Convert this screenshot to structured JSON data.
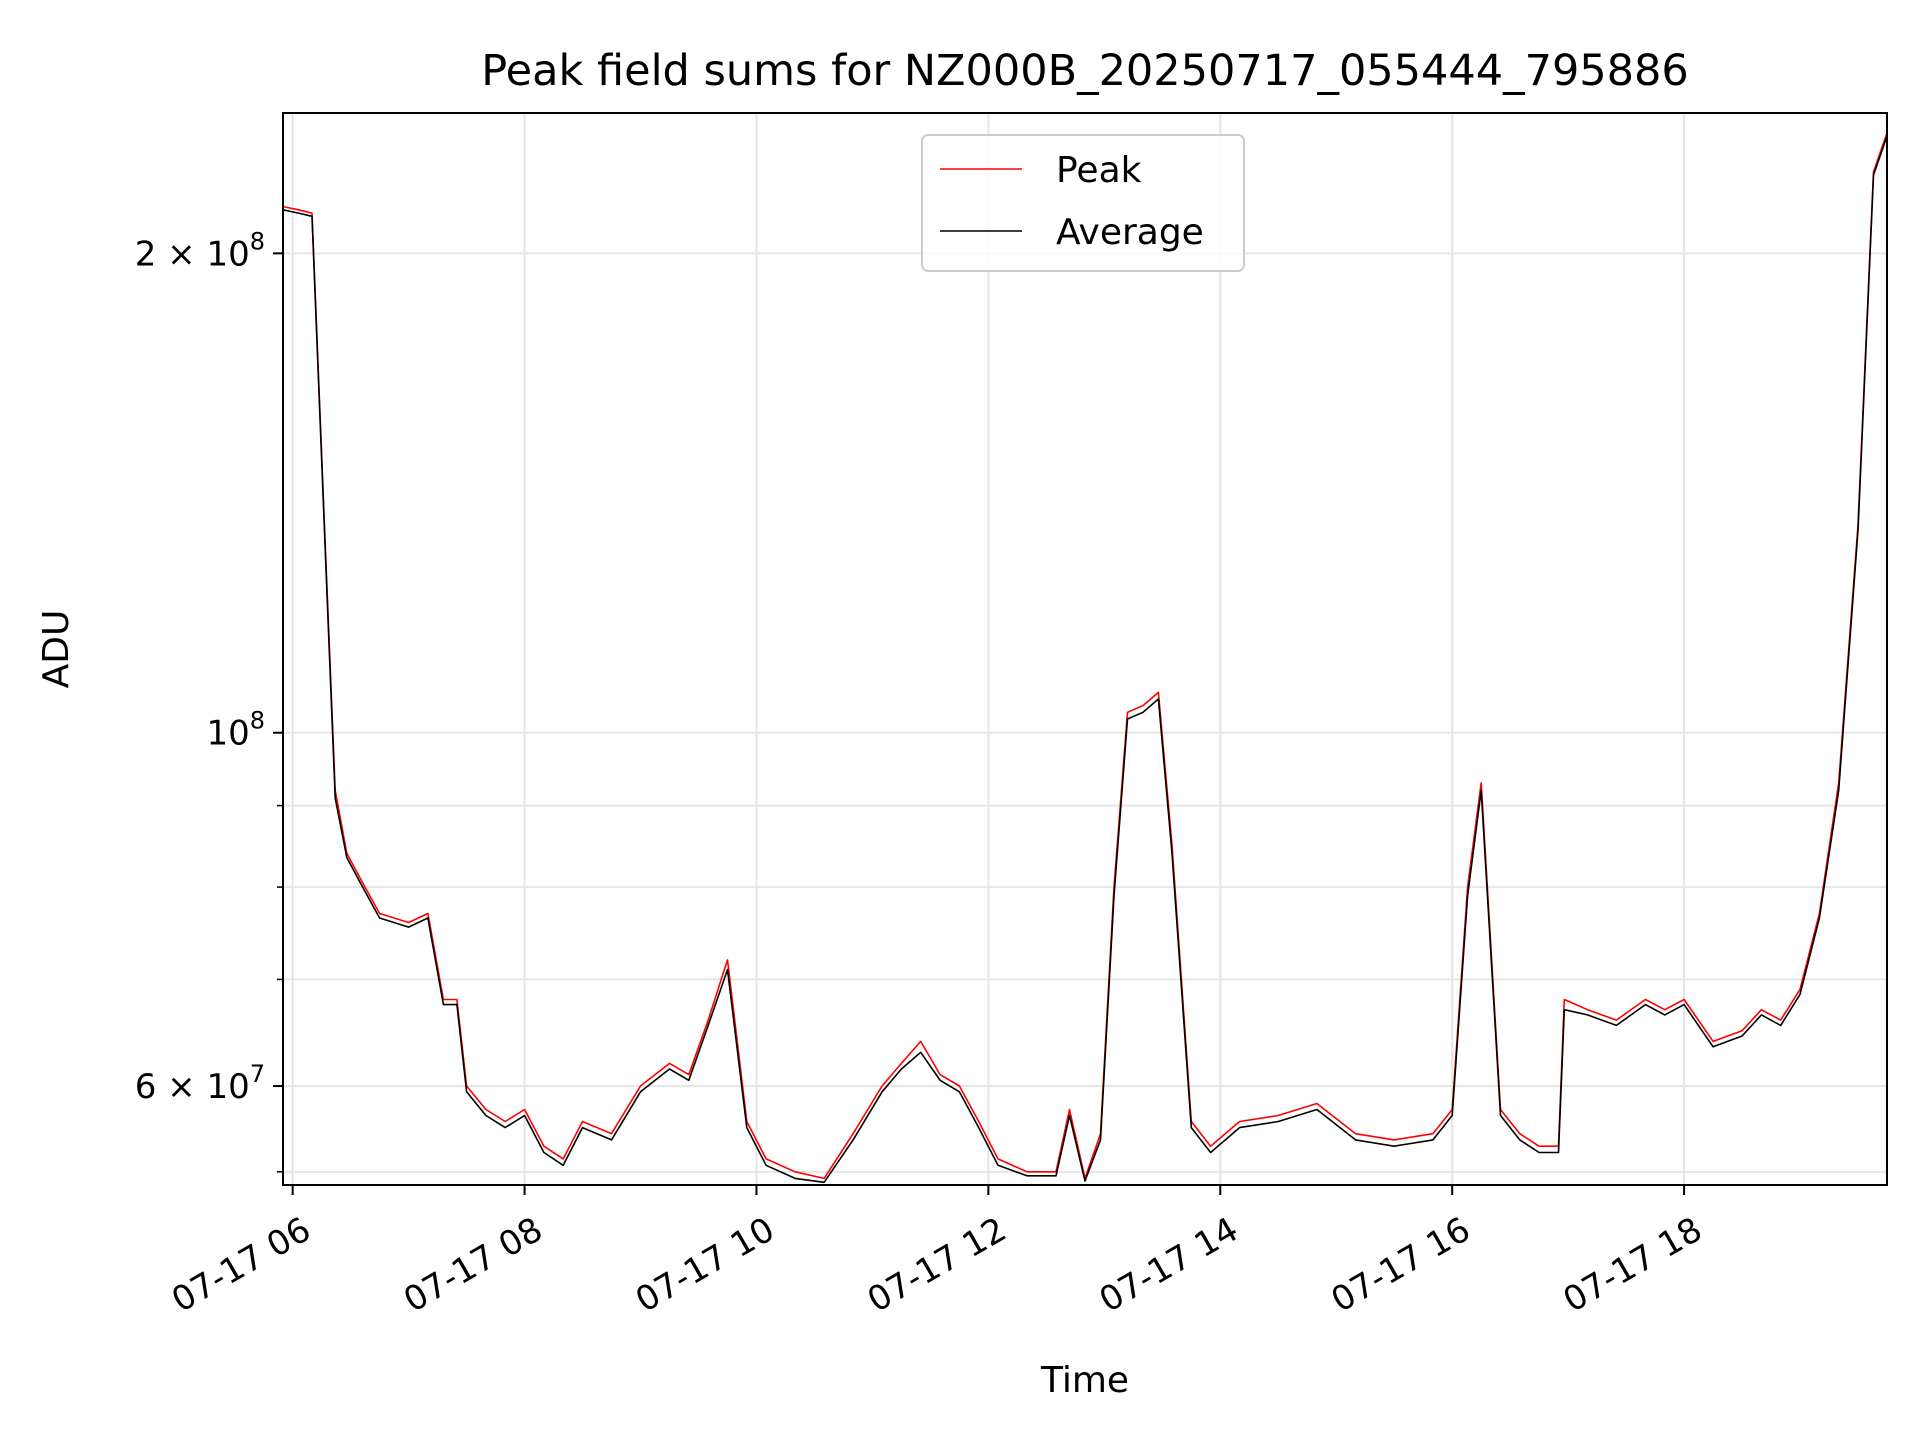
{
  "chart_data": {
    "type": "line",
    "title": "Peak field sums for NZ000B_20250717_055444_795886",
    "xlabel": "Time",
    "ylabel": "ADU",
    "y_scale": "log",
    "xlim": [
      "2025-07-17 05:55",
      "2025-07-17 19:45"
    ],
    "ylim": [
      52000000,
      245000000
    ],
    "grid": true,
    "legend_position": "top-center",
    "x_ticks": [
      "2025-07-17 06:00",
      "2025-07-17 08:00",
      "2025-07-17 10:00",
      "2025-07-17 12:00",
      "2025-07-17 14:00",
      "2025-07-17 16:00",
      "2025-07-17 18:00"
    ],
    "x_tick_labels": [
      "07-17 06",
      "07-17 08",
      "07-17 10",
      "07-17 12",
      "07-17 14",
      "07-17 16",
      "07-17 18"
    ],
    "y_major_ticks": [
      60000000,
      100000000,
      200000000
    ],
    "y_tick_labels": [
      {
        "mantissa": "6",
        "times": " × ",
        "base": "10",
        "exp": "7"
      },
      {
        "mantissa": "",
        "times": "",
        "base": "10",
        "exp": "8"
      },
      {
        "mantissa": "2",
        "times": " × ",
        "base": "10",
        "exp": "8"
      }
    ],
    "y_minor_ticks": [
      53000000,
      70000000,
      80000000,
      90000000
    ],
    "x": [
      "2025-07-17 05:55",
      "2025-07-17 06:03",
      "2025-07-17 06:10",
      "2025-07-17 06:17",
      "2025-07-17 06:22",
      "2025-07-17 06:28",
      "2025-07-17 06:35",
      "2025-07-17 06:45",
      "2025-07-17 07:00",
      "2025-07-17 07:10",
      "2025-07-17 07:18",
      "2025-07-17 07:25",
      "2025-07-17 07:30",
      "2025-07-17 07:40",
      "2025-07-17 07:50",
      "2025-07-17 08:00",
      "2025-07-17 08:10",
      "2025-07-17 08:20",
      "2025-07-17 08:30",
      "2025-07-17 08:45",
      "2025-07-17 09:00",
      "2025-07-17 09:15",
      "2025-07-17 09:25",
      "2025-07-17 09:35",
      "2025-07-17 09:45",
      "2025-07-17 09:55",
      "2025-07-17 10:05",
      "2025-07-17 10:20",
      "2025-07-17 10:35",
      "2025-07-17 10:50",
      "2025-07-17 11:05",
      "2025-07-17 11:15",
      "2025-07-17 11:25",
      "2025-07-17 11:35",
      "2025-07-17 11:45",
      "2025-07-17 11:55",
      "2025-07-17 12:05",
      "2025-07-17 12:20",
      "2025-07-17 12:35",
      "2025-07-17 12:42",
      "2025-07-17 12:50",
      "2025-07-17 12:58",
      "2025-07-17 13:05",
      "2025-07-17 13:12",
      "2025-07-17 13:20",
      "2025-07-17 13:28",
      "2025-07-17 13:35",
      "2025-07-17 13:45",
      "2025-07-17 13:55",
      "2025-07-17 14:10",
      "2025-07-17 14:30",
      "2025-07-17 14:50",
      "2025-07-17 15:10",
      "2025-07-17 15:30",
      "2025-07-17 15:50",
      "2025-07-17 16:00",
      "2025-07-17 16:08",
      "2025-07-17 16:15",
      "2025-07-17 16:25",
      "2025-07-17 16:35",
      "2025-07-17 16:45",
      "2025-07-17 16:55",
      "2025-07-17 16:58",
      "2025-07-17 17:10",
      "2025-07-17 17:25",
      "2025-07-17 17:40",
      "2025-07-17 17:50",
      "2025-07-17 18:00",
      "2025-07-17 18:15",
      "2025-07-17 18:30",
      "2025-07-17 18:40",
      "2025-07-17 18:50",
      "2025-07-17 19:00",
      "2025-07-17 19:10",
      "2025-07-17 19:20",
      "2025-07-17 19:30",
      "2025-07-17 19:38",
      "2025-07-17 19:45"
    ],
    "series": [
      {
        "name": "Peak",
        "color": "#ff0000",
        "values": [
          214000000,
          213000000,
          212000000,
          130000000,
          92000000,
          84000000,
          81000000,
          77000000,
          76000000,
          77000000,
          68000000,
          68000000,
          60000000,
          58000000,
          57000000,
          58000000,
          55000000,
          54000000,
          57000000,
          56000000,
          60000000,
          62000000,
          61000000,
          66000000,
          72000000,
          57000000,
          54000000,
          53000000,
          52500000,
          56000000,
          60000000,
          62000000,
          64000000,
          61000000,
          60000000,
          57000000,
          54000000,
          53000000,
          53000000,
          58000000,
          52500000,
          56000000,
          80000000,
          103000000,
          104000000,
          106000000,
          85000000,
          57000000,
          55000000,
          57000000,
          57500000,
          58500000,
          56000000,
          55500000,
          56000000,
          58000000,
          80000000,
          93000000,
          58000000,
          56000000,
          55000000,
          55000000,
          68000000,
          67000000,
          66000000,
          68000000,
          67000000,
          68000000,
          64000000,
          65000000,
          67000000,
          66000000,
          69000000,
          77000000,
          93000000,
          135000000,
          225000000,
          238000000
        ]
      },
      {
        "name": "Average",
        "color": "#000000",
        "values": [
          213000000,
          212000000,
          211000000,
          129000000,
          91000000,
          83500000,
          80500000,
          76500000,
          75500000,
          76500000,
          67500000,
          67500000,
          59500000,
          57500000,
          56500000,
          57500000,
          54500000,
          53500000,
          56500000,
          55500000,
          59500000,
          61500000,
          60500000,
          65500000,
          71000000,
          56500000,
          53500000,
          52500000,
          52200000,
          55500000,
          59500000,
          61500000,
          63000000,
          60500000,
          59500000,
          56500000,
          53500000,
          52700000,
          52700000,
          57500000,
          52300000,
          55500000,
          79000000,
          102000000,
          103000000,
          105000000,
          84000000,
          56500000,
          54500000,
          56500000,
          57000000,
          58000000,
          55500000,
          55000000,
          55500000,
          57500000,
          79000000,
          92000000,
          57500000,
          55500000,
          54500000,
          54500000,
          67000000,
          66500000,
          65500000,
          67500000,
          66500000,
          67500000,
          63500000,
          64500000,
          66500000,
          65500000,
          68500000,
          76500000,
          92000000,
          134000000,
          224000000,
          237000000
        ]
      }
    ]
  }
}
